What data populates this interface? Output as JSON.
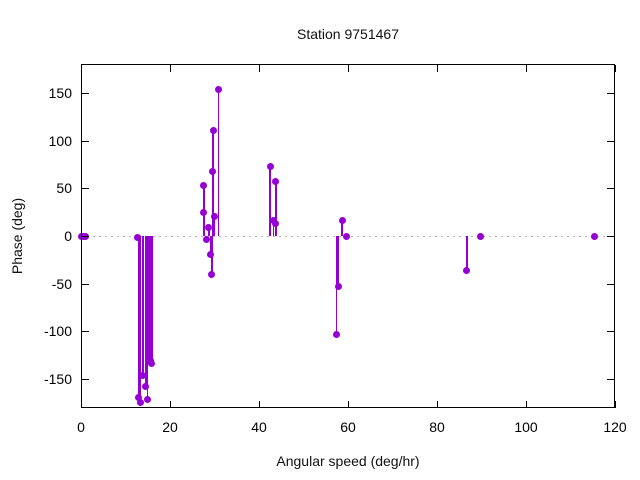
{
  "window": {
    "title": "Station 9751467"
  },
  "chart_data": {
    "type": "scatter",
    "style": "impulses-and-points",
    "title": "Station 9751467",
    "xlabel": "Angular speed (deg/hr)",
    "ylabel": "Phase (deg)",
    "xlim": [
      0,
      120
    ],
    "ylim": [
      -181,
      181
    ],
    "xticks": [
      0,
      20,
      40,
      60,
      80,
      100,
      120
    ],
    "yticks": [
      -150,
      -100,
      -50,
      0,
      50,
      100,
      150
    ],
    "grid": false,
    "legend": "none",
    "zero_line": true,
    "point_color": "#9400d3",
    "zero_line_color": "#b4b4b4",
    "border_color": "#000000",
    "background_color": "#ffffff",
    "points": [
      {
        "x": 0.0,
        "y": 0
      },
      {
        "x": 0.5,
        "y": 0
      },
      {
        "x": 1.0,
        "y": 0
      },
      {
        "x": 12.7,
        "y": -2
      },
      {
        "x": 13.0,
        "y": -170
      },
      {
        "x": 13.3,
        "y": -175
      },
      {
        "x": 13.9,
        "y": -147
      },
      {
        "x": 14.6,
        "y": -158
      },
      {
        "x": 14.9,
        "y": -172
      },
      {
        "x": 15.3,
        "y": -129
      },
      {
        "x": 15.6,
        "y": -131
      },
      {
        "x": 15.9,
        "y": -134
      },
      {
        "x": 27.5,
        "y": 25
      },
      {
        "x": 27.6,
        "y": 53
      },
      {
        "x": 28.1,
        "y": -4
      },
      {
        "x": 28.7,
        "y": 9
      },
      {
        "x": 29.1,
        "y": -19
      },
      {
        "x": 29.4,
        "y": -41
      },
      {
        "x": 29.6,
        "y": 68
      },
      {
        "x": 29.7,
        "y": 111
      },
      {
        "x": 29.9,
        "y": 20
      },
      {
        "x": 30.9,
        "y": 154
      },
      {
        "x": 42.5,
        "y": 73
      },
      {
        "x": 43.3,
        "y": 16
      },
      {
        "x": 43.7,
        "y": 13
      },
      {
        "x": 43.8,
        "y": 57
      },
      {
        "x": 57.4,
        "y": -104
      },
      {
        "x": 57.8,
        "y": -53
      },
      {
        "x": 58.7,
        "y": 16
      },
      {
        "x": 59.7,
        "y": -1
      },
      {
        "x": 86.7,
        "y": -36
      },
      {
        "x": 89.7,
        "y": 0
      },
      {
        "x": 115.5,
        "y": 0
      }
    ]
  }
}
